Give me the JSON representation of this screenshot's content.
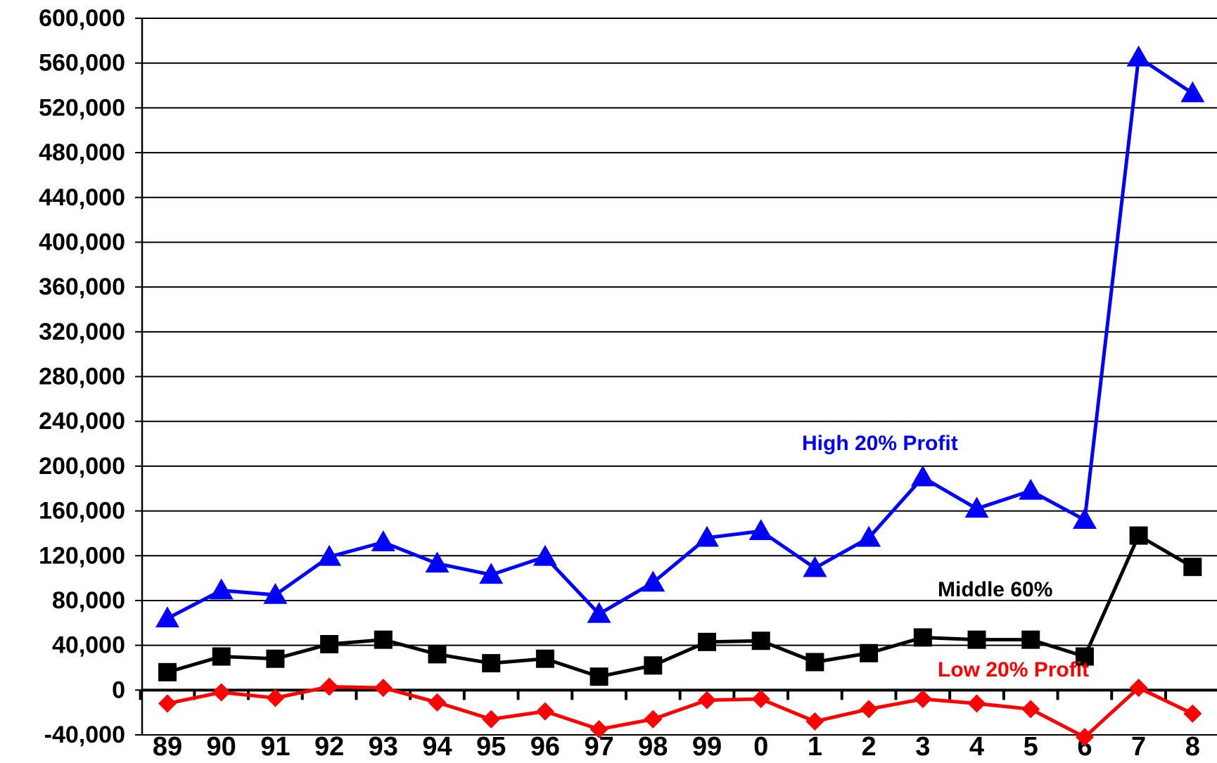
{
  "chart_data": {
    "type": "line",
    "title": "",
    "xlabel": "",
    "ylabel": "",
    "categories": [
      "89",
      "90",
      "91",
      "92",
      "93",
      "94",
      "95",
      "96",
      "97",
      "98",
      "99",
      "0",
      "1",
      "2",
      "3",
      "4",
      "5",
      "6",
      "7",
      "8"
    ],
    "ylim": [
      -40000,
      600000
    ],
    "yticks": [
      -40000,
      0,
      40000,
      80000,
      120000,
      160000,
      200000,
      240000,
      280000,
      320000,
      360000,
      400000,
      440000,
      480000,
      520000,
      560000,
      600000
    ],
    "ytick_labels": [
      "-40,000",
      "0",
      "40,000",
      "80,000",
      "120,000",
      "160,000",
      "200,000",
      "240,000",
      "280,000",
      "320,000",
      "360,000",
      "400,000",
      "440,000",
      "480,000",
      "520,000",
      "560,000",
      "600,000"
    ],
    "grid": true,
    "series": [
      {
        "name": "High 20% Profit",
        "color": "#0000ff",
        "marker": "triangle",
        "values": [
          64000,
          89000,
          85000,
          119000,
          132000,
          113000,
          103000,
          119000,
          68000,
          96000,
          136000,
          142000,
          109000,
          136000,
          190000,
          162000,
          178000,
          152000,
          565000,
          533000
        ]
      },
      {
        "name": "Middle 60%",
        "color": "#000000",
        "marker": "square",
        "values": [
          16000,
          30000,
          28000,
          41000,
          45000,
          32000,
          24000,
          28000,
          12000,
          22000,
          43000,
          44000,
          25000,
          33000,
          47000,
          45000,
          45000,
          30000,
          138000,
          110000
        ]
      },
      {
        "name": "Low 20% Profit",
        "color": "#ff0000",
        "marker": "diamond",
        "values": [
          -12000,
          -2000,
          -7000,
          3000,
          2000,
          -11000,
          -26000,
          -19000,
          -35000,
          -26000,
          -9000,
          -8000,
          -28000,
          -17000,
          -8000,
          -12000,
          -17000,
          -42000,
          2000,
          -21000
        ]
      }
    ],
    "annotations": [
      {
        "text": "High 20% Profit",
        "color": "#0000ff"
      },
      {
        "text": "Middle 60%",
        "color": "#000000"
      },
      {
        "text": "Low 20% Profit",
        "color": "#ff0000"
      }
    ]
  }
}
